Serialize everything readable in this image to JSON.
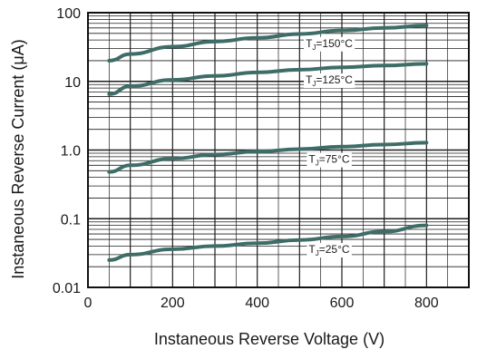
{
  "chart_data": {
    "type": "line",
    "xlabel": "Instaneous Reverse Voltage (V)",
    "ylabel": "Instaneous Reverse Current (μA)",
    "xlim": [
      0,
      900
    ],
    "ylim": [
      0.01,
      100
    ],
    "yscale": "log",
    "grid": true,
    "x_ticks": [
      0,
      200,
      400,
      600,
      800
    ],
    "x_tick_labels": [
      "0",
      "200",
      "400",
      "600",
      "800"
    ],
    "y_ticks": [
      0.01,
      0.1,
      1.0,
      10,
      100
    ],
    "y_tick_labels": [
      "0.01",
      "0.1",
      "1.0",
      "10",
      "100"
    ],
    "series": [
      {
        "name": "TJ=150°C",
        "label_prefix": "T",
        "label_sub": "J",
        "label_suffix": "=150°C",
        "x": [
          50,
          100,
          200,
          300,
          400,
          500,
          600,
          700,
          800
        ],
        "y": [
          20,
          25,
          32,
          38,
          43,
          49,
          55,
          60,
          65
        ]
      },
      {
        "name": "TJ=125°C",
        "label_prefix": "T",
        "label_sub": "J",
        "label_suffix": "=125°C",
        "x": [
          50,
          100,
          200,
          300,
          400,
          500,
          600,
          700,
          800
        ],
        "y": [
          6.5,
          8.5,
          10.5,
          12,
          13.5,
          14.8,
          16,
          17,
          18
        ]
      },
      {
        "name": "TJ=75°C",
        "label_prefix": "T",
        "label_sub": "J",
        "label_suffix": "=75°C",
        "x": [
          50,
          100,
          200,
          300,
          400,
          500,
          600,
          700,
          800
        ],
        "y": [
          0.48,
          0.6,
          0.75,
          0.86,
          0.95,
          1.03,
          1.12,
          1.2,
          1.28
        ]
      },
      {
        "name": "TJ=25°C",
        "label_prefix": "T",
        "label_sub": "J",
        "label_suffix": "=25°C",
        "x": [
          50,
          100,
          200,
          300,
          400,
          500,
          600,
          700,
          800
        ],
        "y": [
          0.025,
          0.03,
          0.036,
          0.04,
          0.044,
          0.049,
          0.055,
          0.065,
          0.08
        ]
      }
    ],
    "colors": {
      "curve": "#3e6d68",
      "grid": "#1e1e1e",
      "axis": "#111111"
    }
  }
}
